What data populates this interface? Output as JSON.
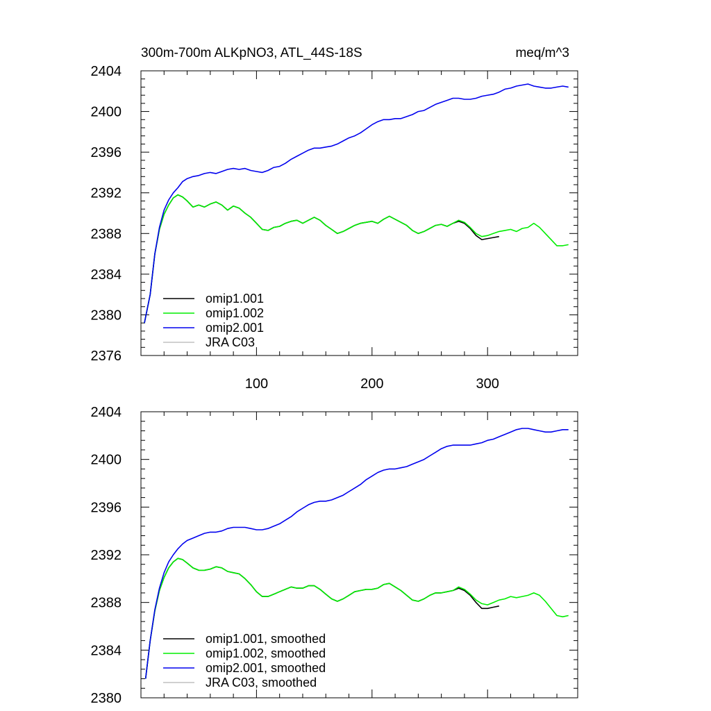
{
  "figure": {
    "title_left": "300m-700m ALKpNO3, ATL_44S-18S",
    "title_right": "meq/m^3"
  },
  "chart_data": [
    {
      "type": "line",
      "title": "300m-700m ALKpNO3, ATL_44S-18S",
      "units": "meq/m^3",
      "xlabel": "",
      "ylabel": "",
      "xlim": [
        0,
        378
      ],
      "ylim": [
        2376,
        2404
      ],
      "xticks": [
        100,
        200,
        300
      ],
      "yticks": [
        2376,
        2380,
        2384,
        2388,
        2392,
        2396,
        2400,
        2404
      ],
      "grid": false,
      "legend_position": "bottom-left",
      "series": [
        {
          "name": "omip1.001",
          "color": "#000000",
          "x": [
            3,
            8,
            12,
            16,
            20,
            24,
            28,
            32,
            36,
            40,
            45,
            50,
            55,
            60,
            65,
            70,
            75,
            80,
            85,
            90,
            95,
            100,
            105,
            110,
            115,
            120,
            125,
            130,
            135,
            140,
            145,
            150,
            155,
            160,
            165,
            170,
            175,
            180,
            185,
            190,
            195,
            200,
            205,
            210,
            215,
            220,
            225,
            230,
            235,
            240,
            245,
            250,
            255,
            260,
            265,
            270,
            275,
            280,
            285,
            290,
            295,
            300,
            305,
            310
          ],
          "y": [
            2379.2,
            2382.0,
            2386.0,
            2388.4,
            2389.9,
            2390.8,
            2391.5,
            2391.8,
            2391.6,
            2391.2,
            2390.6,
            2390.8,
            2390.6,
            2390.9,
            2391.1,
            2390.8,
            2390.3,
            2390.7,
            2390.5,
            2390.0,
            2389.6,
            2389.0,
            2388.4,
            2388.3,
            2388.6,
            2388.7,
            2389.0,
            2389.2,
            2389.3,
            2389.0,
            2389.3,
            2389.6,
            2389.3,
            2388.8,
            2388.4,
            2388.0,
            2388.2,
            2388.5,
            2388.8,
            2389.0,
            2389.1,
            2389.2,
            2389.0,
            2389.4,
            2389.7,
            2389.4,
            2389.1,
            2388.8,
            2388.3,
            2388.0,
            2388.2,
            2388.5,
            2388.8,
            2388.9,
            2388.7,
            2389.0,
            2389.2,
            2389.0,
            2388.5,
            2387.8,
            2387.4,
            2387.5,
            2387.6,
            2387.7
          ]
        },
        {
          "name": "omip1.002",
          "color": "#00ee00",
          "x": [
            3,
            8,
            12,
            16,
            20,
            24,
            28,
            32,
            36,
            40,
            45,
            50,
            55,
            60,
            65,
            70,
            75,
            80,
            85,
            90,
            95,
            100,
            105,
            110,
            115,
            120,
            125,
            130,
            135,
            140,
            145,
            150,
            155,
            160,
            165,
            170,
            175,
            180,
            185,
            190,
            195,
            200,
            205,
            210,
            215,
            220,
            225,
            230,
            235,
            240,
            245,
            250,
            255,
            260,
            265,
            270,
            275,
            280,
            285,
            290,
            295,
            300,
            305,
            310,
            315,
            320,
            325,
            330,
            335,
            340,
            345,
            350,
            355,
            360,
            365,
            370
          ],
          "y": [
            2379.2,
            2382.0,
            2386.0,
            2388.4,
            2389.9,
            2390.8,
            2391.5,
            2391.8,
            2391.6,
            2391.2,
            2390.6,
            2390.8,
            2390.6,
            2390.9,
            2391.1,
            2390.8,
            2390.3,
            2390.7,
            2390.5,
            2390.0,
            2389.6,
            2389.0,
            2388.4,
            2388.3,
            2388.6,
            2388.7,
            2389.0,
            2389.2,
            2389.3,
            2389.0,
            2389.3,
            2389.6,
            2389.3,
            2388.8,
            2388.4,
            2388.0,
            2388.2,
            2388.5,
            2388.8,
            2389.0,
            2389.1,
            2389.2,
            2389.0,
            2389.4,
            2389.7,
            2389.4,
            2389.1,
            2388.8,
            2388.3,
            2388.0,
            2388.2,
            2388.5,
            2388.8,
            2388.9,
            2388.7,
            2389.0,
            2389.3,
            2389.1,
            2388.6,
            2388.0,
            2387.7,
            2387.8,
            2388.0,
            2388.2,
            2388.3,
            2388.4,
            2388.2,
            2388.5,
            2388.6,
            2389.0,
            2388.6,
            2388.0,
            2387.4,
            2386.8,
            2386.8,
            2386.9
          ]
        },
        {
          "name": "omip2.001",
          "color": "#0000ee",
          "x": [
            3,
            8,
            12,
            16,
            20,
            24,
            28,
            32,
            36,
            40,
            45,
            50,
            55,
            60,
            65,
            70,
            75,
            80,
            85,
            90,
            95,
            100,
            105,
            110,
            115,
            120,
            125,
            130,
            135,
            140,
            145,
            150,
            155,
            160,
            165,
            170,
            175,
            180,
            185,
            190,
            195,
            200,
            205,
            210,
            215,
            220,
            225,
            230,
            235,
            240,
            245,
            250,
            255,
            260,
            265,
            270,
            275,
            280,
            285,
            290,
            295,
            300,
            305,
            310,
            315,
            320,
            325,
            330,
            335,
            340,
            345,
            350,
            355,
            360,
            365,
            370
          ],
          "y": [
            2379.2,
            2382.0,
            2386.0,
            2388.6,
            2390.3,
            2391.3,
            2392.0,
            2392.5,
            2393.1,
            2393.4,
            2393.6,
            2393.7,
            2393.9,
            2394.0,
            2393.9,
            2394.1,
            2394.3,
            2394.4,
            2394.3,
            2394.4,
            2394.2,
            2394.1,
            2394.0,
            2394.2,
            2394.5,
            2394.6,
            2394.9,
            2395.3,
            2395.6,
            2395.9,
            2396.2,
            2396.4,
            2396.4,
            2396.5,
            2396.6,
            2396.8,
            2397.1,
            2397.4,
            2397.6,
            2397.9,
            2398.3,
            2398.7,
            2399.0,
            2399.2,
            2399.2,
            2399.3,
            2399.3,
            2399.5,
            2399.7,
            2400.0,
            2400.1,
            2400.4,
            2400.7,
            2400.9,
            2401.1,
            2401.3,
            2401.3,
            2401.2,
            2401.2,
            2401.3,
            2401.5,
            2401.6,
            2401.7,
            2401.9,
            2402.2,
            2402.3,
            2402.5,
            2402.6,
            2402.7,
            2402.5,
            2402.4,
            2402.3,
            2402.3,
            2402.4,
            2402.5,
            2402.4
          ]
        },
        {
          "name": "JRA C03",
          "color": "#c0c0c0",
          "x": [],
          "y": []
        }
      ]
    },
    {
      "type": "line",
      "title": "",
      "xlabel": "",
      "ylabel": "",
      "xlim": [
        0,
        378
      ],
      "ylim": [
        2380,
        2404
      ],
      "xticks": [
        100,
        200,
        300
      ],
      "yticks": [
        2380,
        2384,
        2388,
        2392,
        2396,
        2400,
        2404
      ],
      "grid": false,
      "legend_position": "bottom-left",
      "series": [
        {
          "name": "omip1.001, smoothed",
          "color": "#000000",
          "x": [
            4,
            8,
            12,
            16,
            20,
            24,
            28,
            32,
            36,
            40,
            45,
            50,
            55,
            60,
            65,
            70,
            75,
            80,
            85,
            90,
            95,
            100,
            105,
            110,
            115,
            120,
            125,
            130,
            135,
            140,
            145,
            150,
            155,
            160,
            165,
            170,
            175,
            180,
            185,
            190,
            195,
            200,
            205,
            210,
            215,
            220,
            225,
            230,
            235,
            240,
            245,
            250,
            255,
            260,
            265,
            270,
            275,
            280,
            285,
            290,
            295,
            300,
            305,
            310
          ],
          "y": [
            2381.6,
            2384.8,
            2387.3,
            2389.0,
            2390.1,
            2390.9,
            2391.4,
            2391.7,
            2391.6,
            2391.3,
            2390.9,
            2390.7,
            2390.7,
            2390.8,
            2391.0,
            2390.9,
            2390.6,
            2390.5,
            2390.4,
            2390.0,
            2389.5,
            2388.9,
            2388.5,
            2388.5,
            2388.7,
            2388.9,
            2389.1,
            2389.3,
            2389.2,
            2389.2,
            2389.4,
            2389.4,
            2389.1,
            2388.7,
            2388.3,
            2388.1,
            2388.3,
            2388.6,
            2388.9,
            2389.0,
            2389.1,
            2389.1,
            2389.2,
            2389.5,
            2389.6,
            2389.3,
            2389.0,
            2388.6,
            2388.2,
            2388.1,
            2388.3,
            2388.6,
            2388.8,
            2388.8,
            2388.9,
            2389.0,
            2389.2,
            2389.0,
            2388.6,
            2388.0,
            2387.5,
            2387.5,
            2387.6,
            2387.7
          ]
        },
        {
          "name": "omip1.002, smoothed",
          "color": "#00ee00",
          "x": [
            4,
            8,
            12,
            16,
            20,
            24,
            28,
            32,
            36,
            40,
            45,
            50,
            55,
            60,
            65,
            70,
            75,
            80,
            85,
            90,
            95,
            100,
            105,
            110,
            115,
            120,
            125,
            130,
            135,
            140,
            145,
            150,
            155,
            160,
            165,
            170,
            175,
            180,
            185,
            190,
            195,
            200,
            205,
            210,
            215,
            220,
            225,
            230,
            235,
            240,
            245,
            250,
            255,
            260,
            265,
            270,
            275,
            280,
            285,
            290,
            295,
            300,
            305,
            310,
            315,
            320,
            325,
            330,
            335,
            340,
            345,
            350,
            355,
            360,
            365,
            370
          ],
          "y": [
            2381.6,
            2384.8,
            2387.3,
            2389.0,
            2390.1,
            2390.9,
            2391.4,
            2391.7,
            2391.6,
            2391.3,
            2390.9,
            2390.7,
            2390.7,
            2390.8,
            2391.0,
            2390.9,
            2390.6,
            2390.5,
            2390.4,
            2390.0,
            2389.5,
            2388.9,
            2388.5,
            2388.5,
            2388.7,
            2388.9,
            2389.1,
            2389.3,
            2389.2,
            2389.2,
            2389.4,
            2389.4,
            2389.1,
            2388.7,
            2388.3,
            2388.1,
            2388.3,
            2388.6,
            2388.9,
            2389.0,
            2389.1,
            2389.1,
            2389.2,
            2389.5,
            2389.6,
            2389.3,
            2389.0,
            2388.6,
            2388.2,
            2388.1,
            2388.3,
            2388.6,
            2388.8,
            2388.8,
            2388.9,
            2389.0,
            2389.3,
            2389.1,
            2388.7,
            2388.2,
            2387.9,
            2387.8,
            2388.0,
            2388.2,
            2388.3,
            2388.5,
            2388.4,
            2388.5,
            2388.6,
            2388.8,
            2388.6,
            2388.1,
            2387.5,
            2386.9,
            2386.8,
            2386.9
          ]
        },
        {
          "name": "omip2.001, smoothed",
          "color": "#0000ee",
          "x": [
            4,
            8,
            12,
            16,
            20,
            24,
            28,
            32,
            36,
            40,
            45,
            50,
            55,
            60,
            65,
            70,
            75,
            80,
            85,
            90,
            95,
            100,
            105,
            110,
            115,
            120,
            125,
            130,
            135,
            140,
            145,
            150,
            155,
            160,
            165,
            170,
            175,
            180,
            185,
            190,
            195,
            200,
            205,
            210,
            215,
            220,
            225,
            230,
            235,
            240,
            245,
            250,
            255,
            260,
            265,
            270,
            275,
            280,
            285,
            290,
            295,
            300,
            305,
            310,
            315,
            320,
            325,
            330,
            335,
            340,
            345,
            350,
            355,
            360,
            365,
            370
          ],
          "y": [
            2381.6,
            2384.8,
            2387.4,
            2389.2,
            2390.5,
            2391.4,
            2392.0,
            2392.5,
            2392.9,
            2393.2,
            2393.4,
            2393.6,
            2393.8,
            2393.9,
            2393.9,
            2394.0,
            2394.2,
            2394.3,
            2394.3,
            2394.3,
            2394.2,
            2394.1,
            2394.1,
            2394.2,
            2394.4,
            2394.6,
            2394.9,
            2395.2,
            2395.6,
            2395.9,
            2396.2,
            2396.4,
            2396.5,
            2396.5,
            2396.6,
            2396.8,
            2397.0,
            2397.3,
            2397.6,
            2397.9,
            2398.3,
            2398.6,
            2398.9,
            2399.1,
            2399.2,
            2399.2,
            2399.3,
            2399.4,
            2399.6,
            2399.8,
            2400.0,
            2400.3,
            2400.6,
            2400.9,
            2401.1,
            2401.2,
            2401.2,
            2401.2,
            2401.2,
            2401.3,
            2401.4,
            2401.6,
            2401.7,
            2401.9,
            2402.1,
            2402.3,
            2402.5,
            2402.6,
            2402.6,
            2402.5,
            2402.4,
            2402.3,
            2402.3,
            2402.4,
            2402.5,
            2402.5
          ]
        },
        {
          "name": "JRA C03, smoothed",
          "color": "#c0c0c0",
          "x": [],
          "y": []
        }
      ]
    }
  ]
}
